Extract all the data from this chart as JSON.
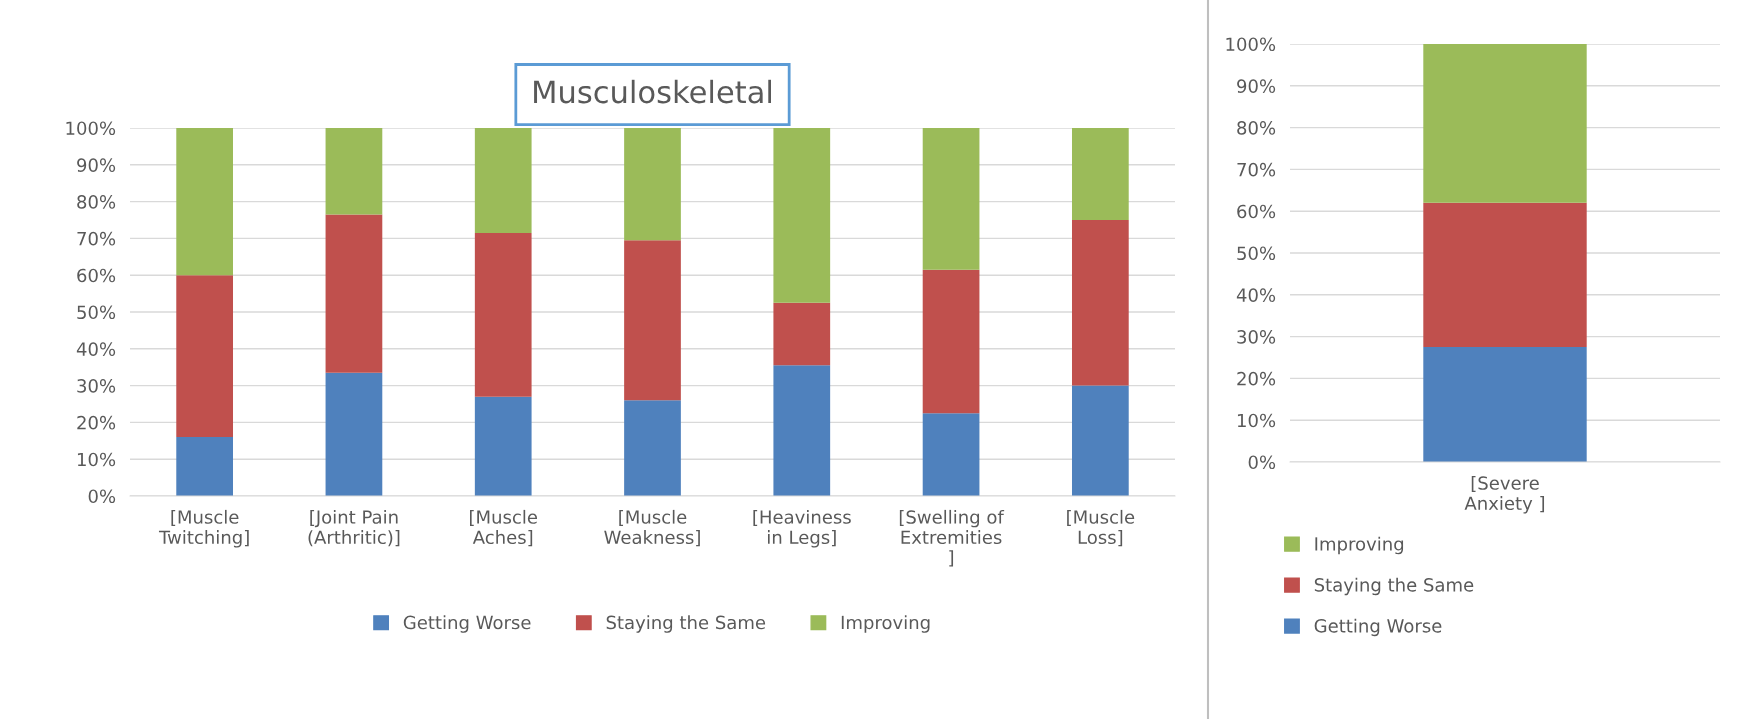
{
  "chart_data": [
    {
      "type": "bar",
      "title": "Musculoskeletal",
      "stacked": true,
      "grid": "y",
      "legend": "bottom",
      "categories": [
        "[Muscle Twitching]",
        "[Joint Pain (Arthritic)]",
        "[Muscle Aches]",
        "[Muscle Weakness]",
        "[Heaviness in Legs]",
        "[Swelling of Extremities ]",
        "[Muscle Loss]"
      ],
      "series": [
        {
          "name": "Getting Worse",
          "color": "#4f81bd",
          "values": [
            16,
            33.5,
            27,
            26,
            35.5,
            22.5,
            30
          ]
        },
        {
          "name": "Staying the Same",
          "color": "#c0504d",
          "values": [
            44,
            43,
            44.5,
            43.5,
            17,
            39,
            45
          ]
        },
        {
          "name": "Improving",
          "color": "#9bbb59",
          "values": [
            40,
            23.5,
            28.5,
            30.5,
            47.5,
            38.5,
            25
          ]
        }
      ],
      "ylim": [
        0,
        100
      ],
      "yticks": [
        {
          "value": 0,
          "label": "0%"
        },
        {
          "value": 10,
          "label": "10%"
        },
        {
          "value": 20,
          "label": "20%"
        },
        {
          "value": 30,
          "label": "30%"
        },
        {
          "value": 40,
          "label": "40%"
        },
        {
          "value": 50,
          "label": "50%"
        },
        {
          "value": 60,
          "label": "60%"
        },
        {
          "value": 70,
          "label": "70%"
        },
        {
          "value": 80,
          "label": "80%"
        },
        {
          "value": 90,
          "label": "90%"
        },
        {
          "value": 100,
          "label": "100%"
        }
      ]
    },
    {
      "type": "bar",
      "stacked": true,
      "grid": "y",
      "legend": "bottom",
      "categories": [
        "[Severe Anxiety ]"
      ],
      "series": [
        {
          "name": "Getting Worse",
          "color": "#4f81bd",
          "values": [
            27.5
          ]
        },
        {
          "name": "Staying the Same",
          "color": "#c0504d",
          "values": [
            34.5
          ]
        },
        {
          "name": "Improving",
          "color": "#9bbb59",
          "values": [
            38
          ]
        }
      ],
      "ylim": [
        0,
        100
      ],
      "yticks": [
        {
          "value": 0,
          "label": "0%"
        },
        {
          "value": 10,
          "label": "10%"
        },
        {
          "value": 20,
          "label": "20%"
        },
        {
          "value": 30,
          "label": "30%"
        },
        {
          "value": 40,
          "label": "40%"
        },
        {
          "value": 50,
          "label": "50%"
        },
        {
          "value": 60,
          "label": "60%"
        },
        {
          "value": 70,
          "label": "70%"
        },
        {
          "value": 80,
          "label": "80%"
        },
        {
          "value": 90,
          "label": "90%"
        },
        {
          "value": 100,
          "label": "100%"
        }
      ]
    }
  ]
}
